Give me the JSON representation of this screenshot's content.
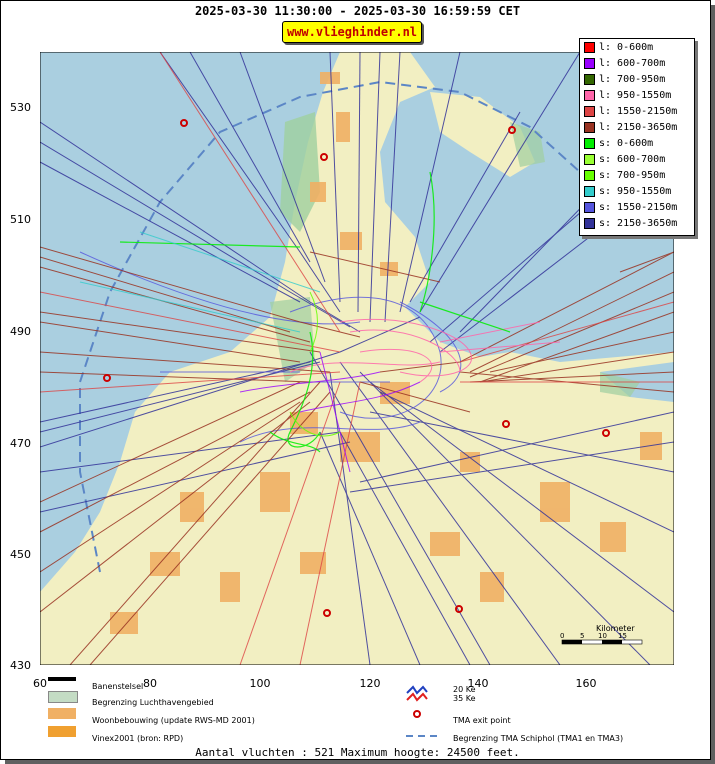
{
  "header": {
    "title": "2025-03-30 11:30:00 - 2025-03-30 16:59:59 CET",
    "site": "www.vlieghinder.nl"
  },
  "axes": {
    "x_ticks": [
      "60",
      "80",
      "100",
      "120",
      "140",
      "160"
    ],
    "y_ticks": [
      "530",
      "510",
      "490",
      "470",
      "450",
      "430"
    ]
  },
  "legend": [
    {
      "label": "l: 0-600m",
      "color": "#ff0000"
    },
    {
      "label": "l: 600-700m",
      "color": "#9900ff"
    },
    {
      "label": "l: 700-950m",
      "color": "#336600"
    },
    {
      "label": "l: 950-1550m",
      "color": "#ff66aa"
    },
    {
      "label": "l: 1550-2150m",
      "color": "#dd4444"
    },
    {
      "label": "l: 2150-3650m",
      "color": "#993322"
    },
    {
      "label": "s: 0-600m",
      "color": "#00ee00"
    },
    {
      "label": "s: 600-700m",
      "color": "#99ff33"
    },
    {
      "label": "s: 700-950m",
      "color": "#66ff00"
    },
    {
      "label": "s: 950-1550m",
      "color": "#33cccc"
    },
    {
      "label": "s: 1550-2150m",
      "color": "#5555dd"
    },
    {
      "label": "s: 2150-3650m",
      "color": "#333399"
    }
  ],
  "bottom_legend": {
    "runways": "Banenstelsel",
    "airport_boundary": "Begrenzing Luchthavengebied",
    "housing": "Woonbebouwing (update RWS-MD 2001)",
    "vinex": "Vinex2001 (bron: RPD)",
    "noise_20": "20 Ke",
    "noise_35": "35 Ke",
    "tma_exit": "TMA exit point",
    "tma_boundary": "Begrenzing TMA Schiphol  (TMA1 en TMA3)"
  },
  "scale_bar": {
    "label": "Kilometer",
    "ticks": [
      "0",
      "5",
      "10",
      "15"
    ]
  },
  "footer": "Aantal vluchten : 521 Maximum hoogte: 24500 feet.",
  "colors": {
    "sea": "#aacfe0",
    "land": "#f2efc2",
    "urban": "#f0b064",
    "green": "#9fcf9f",
    "tma_dash": "#5b86c6",
    "exit_point": "#cc0000"
  }
}
